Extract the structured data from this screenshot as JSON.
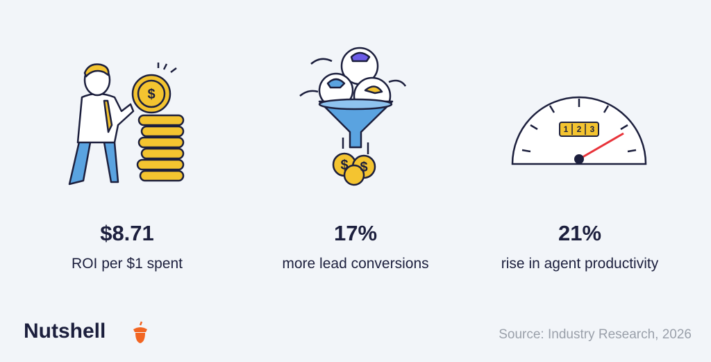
{
  "stats": [
    {
      "value": "$8.71",
      "label": "ROI per $1 spent"
    },
    {
      "value": "17%",
      "label": "more lead conversions"
    },
    {
      "value": "21%",
      "label": "rise in agent productivity"
    }
  ],
  "gauge_digits": [
    "1",
    "2",
    "3"
  ],
  "coin_symbol": "$",
  "brand": "Nutshell",
  "source": "Source: Industry Research, 2026"
}
